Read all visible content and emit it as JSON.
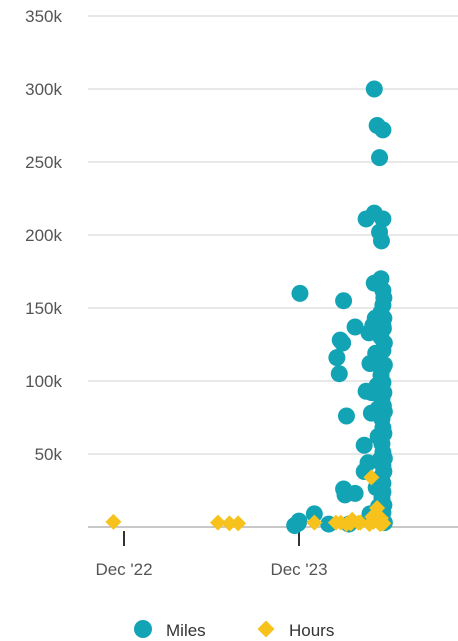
{
  "chart_data": {
    "type": "scatter",
    "title": "",
    "xlabel": "",
    "ylabel": "",
    "x_range": [
      "2022-09-01",
      "2024-12-31"
    ],
    "ylim": [
      0,
      350000
    ],
    "y_ticks": [
      {
        "value": 50000,
        "label": "50k"
      },
      {
        "value": 100000,
        "label": "100k"
      },
      {
        "value": 150000,
        "label": "150k"
      },
      {
        "value": 200000,
        "label": "200k"
      },
      {
        "value": 250000,
        "label": "250k"
      },
      {
        "value": 300000,
        "label": "300k"
      },
      {
        "value": 350000,
        "label": "350k"
      }
    ],
    "x_ticks": [
      {
        "value": "2022-12-01",
        "label": "Dec '22"
      },
      {
        "value": "2023-12-01",
        "label": "Dec '23"
      }
    ],
    "grid": true,
    "legend_position": "bottom",
    "series": [
      {
        "name": "Miles",
        "marker": "circle",
        "color": "#12a4b4",
        "points": [
          [
            "2023-11-22",
            1000
          ],
          [
            "2023-11-29",
            2500
          ],
          [
            "2023-12-01",
            4000
          ],
          [
            "2023-12-03",
            160000
          ],
          [
            "2024-01-02",
            9000
          ],
          [
            "2024-02-01",
            2000
          ],
          [
            "2024-02-18",
            116000
          ],
          [
            "2024-02-23",
            105000
          ],
          [
            "2024-02-25",
            128000
          ],
          [
            "2024-03-01",
            126000
          ],
          [
            "2024-03-03",
            155000
          ],
          [
            "2024-03-03",
            26000
          ],
          [
            "2024-03-06",
            22000
          ],
          [
            "2024-03-09",
            76000
          ],
          [
            "2024-03-14",
            2000
          ],
          [
            "2024-03-27",
            137000
          ],
          [
            "2024-03-27",
            23000
          ],
          [
            "2024-04-15",
            56000
          ],
          [
            "2024-04-15",
            38000
          ],
          [
            "2024-04-19",
            93000
          ],
          [
            "2024-04-19",
            211000
          ],
          [
            "2024-04-23",
            44000
          ],
          [
            "2024-04-25",
            133000
          ],
          [
            "2024-04-27",
            112000
          ],
          [
            "2024-04-27",
            9000
          ],
          [
            "2024-04-30",
            78000
          ],
          [
            "2024-05-01",
            92000
          ],
          [
            "2024-05-03",
            138000
          ],
          [
            "2024-05-06",
            300000
          ],
          [
            "2024-05-06",
            215000
          ],
          [
            "2024-05-06",
            167000
          ],
          [
            "2024-05-08",
            143000
          ],
          [
            "2024-05-09",
            119000
          ],
          [
            "2024-05-10",
            27000
          ],
          [
            "2024-05-12",
            275000
          ],
          [
            "2024-05-12",
            97000
          ],
          [
            "2024-05-14",
            81000
          ],
          [
            "2024-05-14",
            62000
          ],
          [
            "2024-05-15",
            14000
          ],
          [
            "2024-05-17",
            253000
          ],
          [
            "2024-05-17",
            202000
          ],
          [
            "2024-05-18",
            46000
          ],
          [
            "2024-05-20",
            170000
          ],
          [
            "2024-05-20",
            147000
          ],
          [
            "2024-05-20",
            130000
          ],
          [
            "2024-05-20",
            104000
          ],
          [
            "2024-05-21",
            196000
          ],
          [
            "2024-05-22",
            88000
          ],
          [
            "2024-05-22",
            74000
          ],
          [
            "2024-05-22",
            57000
          ],
          [
            "2024-05-22",
            35000
          ],
          [
            "2024-05-22",
            20000
          ],
          [
            "2024-05-24",
            272000
          ],
          [
            "2024-05-24",
            211000
          ],
          [
            "2024-05-24",
            162000
          ],
          [
            "2024-05-24",
            152000
          ],
          [
            "2024-05-24",
            138000
          ],
          [
            "2024-05-24",
            121000
          ],
          [
            "2024-05-24",
            109000
          ],
          [
            "2024-05-24",
            99000
          ],
          [
            "2024-05-24",
            68000
          ],
          [
            "2024-05-24",
            51000
          ],
          [
            "2024-05-24",
            42000
          ],
          [
            "2024-05-24",
            30000
          ],
          [
            "2024-05-24",
            24000
          ],
          [
            "2024-05-24",
            10000
          ],
          [
            "2024-05-25",
            136000
          ],
          [
            "2024-05-25",
            83000
          ],
          [
            "2024-05-26",
            157000
          ],
          [
            "2024-05-26",
            143000
          ],
          [
            "2024-05-26",
            92000
          ],
          [
            "2024-05-26",
            64000
          ],
          [
            "2024-05-26",
            38000
          ],
          [
            "2024-05-26",
            15000
          ],
          [
            "2024-05-27",
            126000
          ],
          [
            "2024-05-27",
            111000
          ],
          [
            "2024-05-27",
            79000
          ],
          [
            "2024-05-27",
            47000
          ],
          [
            "2024-05-27",
            3000
          ]
        ]
      },
      {
        "name": "Hours",
        "marker": "diamond",
        "color": "#f8c21c",
        "points": [
          [
            "2022-11-09",
            3500
          ],
          [
            "2023-06-15",
            3000
          ],
          [
            "2023-07-09",
            2500
          ],
          [
            "2023-07-27",
            2500
          ],
          [
            "2024-01-02",
            3000
          ],
          [
            "2024-02-16",
            3000
          ],
          [
            "2024-02-26",
            3000
          ],
          [
            "2024-03-09",
            2000
          ],
          [
            "2024-03-18",
            2500
          ],
          [
            "2024-03-21",
            5000
          ],
          [
            "2024-04-03",
            3000
          ],
          [
            "2024-04-07",
            3000
          ],
          [
            "2024-04-26",
            2000
          ],
          [
            "2024-04-30",
            34000
          ],
          [
            "2024-05-02",
            7000
          ],
          [
            "2024-05-04",
            3500
          ],
          [
            "2024-05-08",
            8000
          ],
          [
            "2024-05-12",
            13000
          ],
          [
            "2024-05-15",
            4000
          ],
          [
            "2024-05-18",
            2000
          ],
          [
            "2024-05-20",
            6000
          ],
          [
            "2024-05-22",
            3000
          ],
          [
            "2024-05-25",
            2500
          ]
        ]
      }
    ]
  }
}
